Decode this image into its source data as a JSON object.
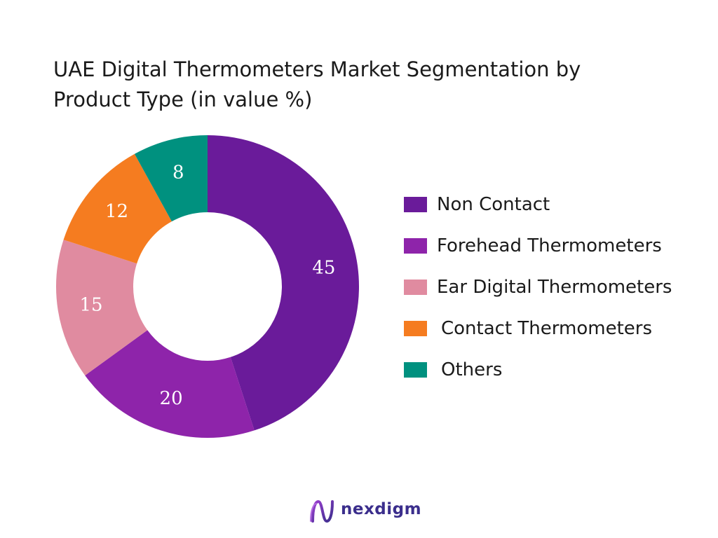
{
  "chart_data": {
    "type": "pie",
    "title_lines": [
      "UAE Digital Thermometers Market Segmentation by",
      "Product Type (in value %)"
    ],
    "categories": [
      "Non Contact",
      "Forehead Thermometers",
      "Ear Digital Thermometers",
      "Contact Thermometers",
      "Others"
    ],
    "values": [
      45,
      20,
      15,
      12,
      8
    ],
    "data_labels": [
      "45",
      "20",
      "15",
      "12",
      "8"
    ],
    "colors": [
      "#6a1b9a",
      "#8e24aa",
      "#e08ba0",
      "#f57c20",
      "#00917f"
    ],
    "legend_placement": "right",
    "donut": true
  },
  "brand": {
    "name": "nexdigm",
    "icon": "nexdigm-logo-icon"
  }
}
